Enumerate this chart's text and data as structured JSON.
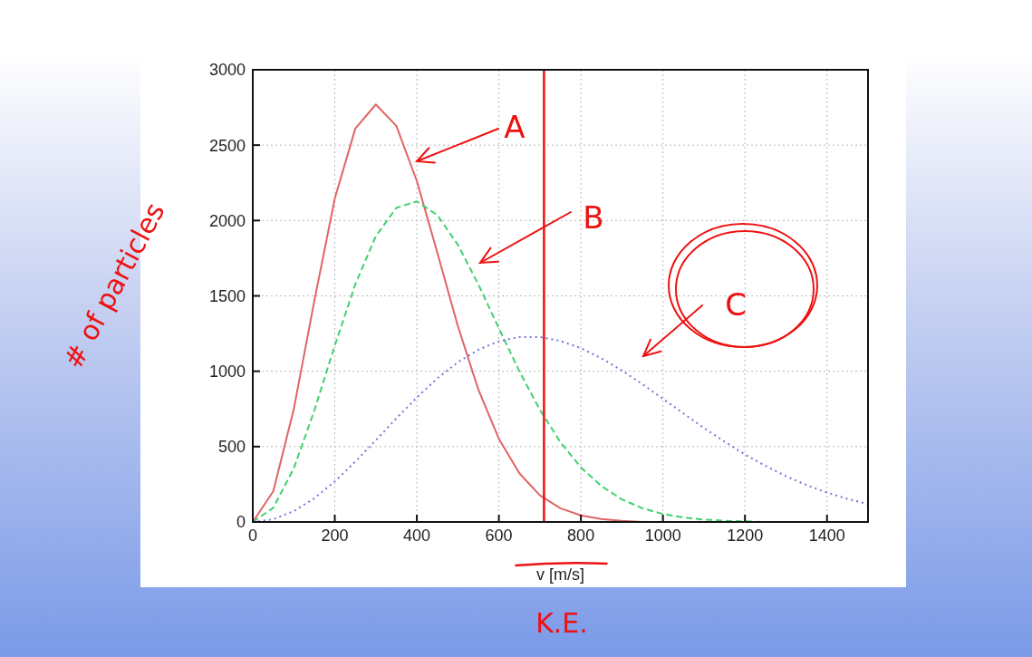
{
  "chart_data": {
    "type": "line",
    "xlabel": "v [m/s]",
    "x": [
      0,
      50,
      100,
      150,
      200,
      250,
      300,
      350,
      400,
      450,
      500,
      550,
      600,
      650,
      700,
      750,
      800,
      850,
      900,
      950,
      1000,
      1050,
      1100,
      1150,
      1200,
      1250,
      1300,
      1350,
      1400,
      1450,
      1500
    ],
    "series": [
      {
        "color": "#e06464",
        "line_style": "solid",
        "values": [
          0,
          204,
          749,
          1466,
          2146,
          2610,
          2770,
          2628,
          2262,
          1786,
          1300,
          878,
          552,
          323,
          177,
          91,
          44,
          20,
          8,
          0,
          null,
          null,
          null,
          null,
          null,
          null,
          null,
          null,
          null,
          null,
          null
        ]
      },
      {
        "color": "#40d070",
        "line_style": "dashed",
        "values": [
          0,
          94,
          356,
          739,
          1171,
          1577,
          1896,
          2084,
          2127,
          2036,
          1839,
          1576,
          1285,
          1000,
          744,
          530,
          362,
          238,
          150,
          91,
          53,
          30,
          16,
          8,
          4,
          0,
          null,
          null,
          null,
          null,
          null
        ]
      },
      {
        "color": "#7474d8",
        "line_style": "dotted",
        "values": [
          0,
          18,
          72,
          157,
          269,
          400,
          542,
          687,
          826,
          953,
          1060,
          1143,
          1199,
          1227,
          1227,
          1201,
          1153,
          1086,
          1005,
          914,
          817,
          720,
          624,
          533,
          448,
          372,
          304,
          245,
          195,
          153,
          118
        ]
      }
    ],
    "xlim": [
      0,
      1500
    ],
    "xticks": [
      0,
      200,
      400,
      600,
      800,
      1000,
      1200,
      1400
    ],
    "ylim": [
      0,
      3000
    ],
    "yticks": [
      0,
      500,
      1000,
      1500,
      2000,
      2500,
      3000
    ],
    "grid": true,
    "marker": "none",
    "ref_lines": [
      {
        "axis": "x",
        "value": 710,
        "color": "#ee1111"
      }
    ],
    "annotations": [
      "A",
      "B",
      "C",
      "# of particles",
      "K.E."
    ]
  }
}
